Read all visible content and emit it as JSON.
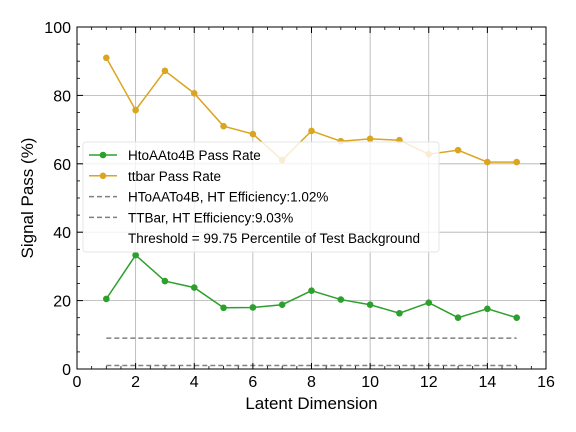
{
  "chart_data": {
    "type": "line",
    "title": "",
    "xlabel": "Latent Dimension",
    "ylabel": "Signal Pass (%)",
    "xlim": [
      0,
      16
    ],
    "ylim": [
      0,
      100
    ],
    "xticks": [
      0,
      2,
      4,
      6,
      8,
      10,
      12,
      14,
      16
    ],
    "yticks": [
      0,
      20,
      40,
      60,
      80,
      100
    ],
    "grid": true,
    "legend_position": "center-left",
    "x": [
      1,
      2,
      3,
      4,
      5,
      6,
      7,
      8,
      9,
      10,
      11,
      12,
      13,
      14,
      15
    ],
    "series": [
      {
        "name": "HtoAAto4B Pass Rate",
        "color": "#2ca02c",
        "style": "line-marker",
        "values": [
          20.5,
          33.3,
          25.7,
          23.8,
          17.9,
          18.0,
          18.8,
          22.9,
          20.3,
          18.8,
          16.3,
          19.4,
          15.0,
          17.6,
          15.0
        ]
      },
      {
        "name": "ttbar Pass Rate",
        "color": "#daa520",
        "style": "line-marker",
        "values": [
          91.0,
          75.7,
          87.2,
          80.6,
          71.0,
          68.7,
          61.1,
          69.6,
          66.6,
          67.3,
          66.9,
          62.8,
          64.0,
          60.5,
          60.5
        ]
      },
      {
        "name": "HToAATo4B, HT Efficiency:1.02%",
        "color": "#808080",
        "style": "dashed",
        "x_range": [
          1,
          15
        ],
        "value": 1.02
      },
      {
        "name": "TTBar, HT Efficiency:9.03%",
        "color": "#808080",
        "style": "dashed",
        "x_range": [
          1,
          15
        ],
        "value": 9.03
      }
    ],
    "annotation": "Threshold = 99.75 Percentile of Test Background"
  }
}
